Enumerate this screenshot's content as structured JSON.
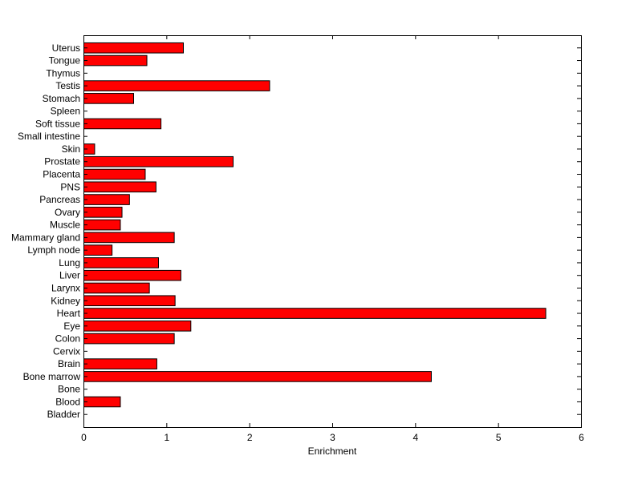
{
  "chart_data": {
    "type": "bar",
    "orientation": "horizontal",
    "title": "",
    "xlabel": "Enrichment",
    "ylabel": "",
    "xlim": [
      0,
      6
    ],
    "x_ticks": [
      "0",
      "1",
      "2",
      "3",
      "4",
      "5",
      "6"
    ],
    "grid": false,
    "legend": "none",
    "bar_color": "#ff0000",
    "bar_edge_color": "#000000",
    "categories": [
      "Bladder",
      "Blood",
      "Bone",
      "Bone marrow",
      "Brain",
      "Cervix",
      "Colon",
      "Eye",
      "Heart",
      "Kidney",
      "Larynx",
      "Liver",
      "Lung",
      "Lymph node",
      "Mammary gland",
      "Muscle",
      "Ovary",
      "Pancreas",
      "PNS",
      "Placenta",
      "Prostate",
      "Skin",
      "Small intestine",
      "Soft tissue",
      "Spleen",
      "Stomach",
      "Testis",
      "Thymus",
      "Tongue",
      "Uterus"
    ],
    "values": [
      0,
      0.44,
      0,
      4.19,
      0.88,
      0,
      1.09,
      1.29,
      5.57,
      1.1,
      0.79,
      1.17,
      0.9,
      0.34,
      1.09,
      0.44,
      0.46,
      0.55,
      0.87,
      0.74,
      1.8,
      0.13,
      0,
      0.93,
      0,
      0.6,
      2.24,
      0,
      0.76,
      1.2
    ]
  }
}
